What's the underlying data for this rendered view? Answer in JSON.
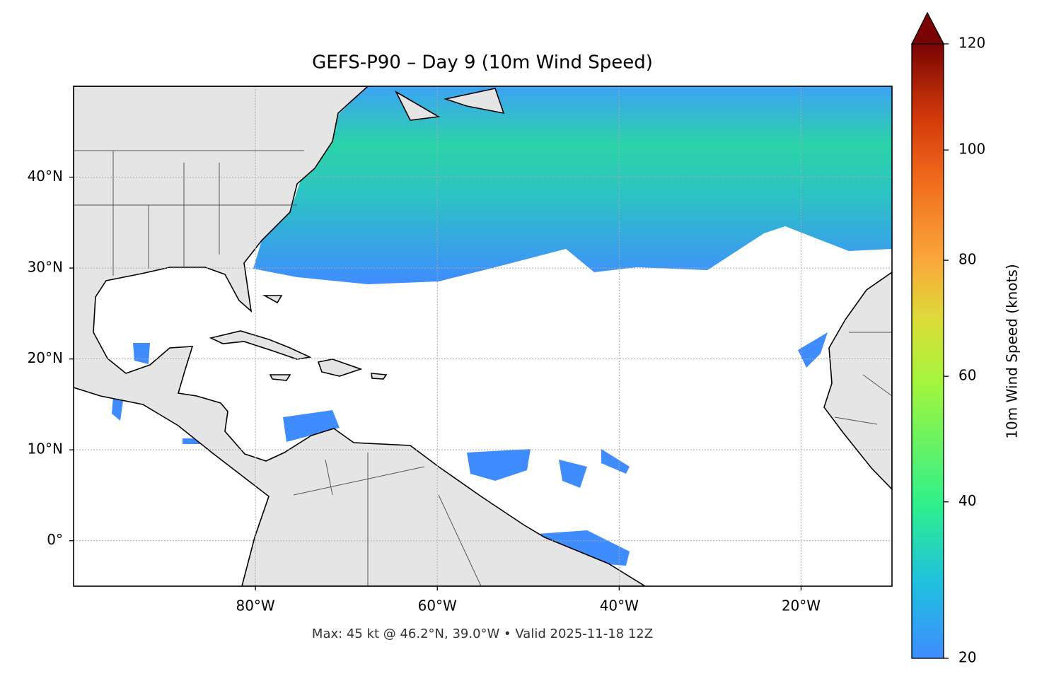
{
  "chart_data": {
    "type": "map",
    "title": "GEFS-P90 – Day 9 (10m Wind Speed)",
    "footer": "Max: 45 kt @ 46.2°N, 39.0°W • Valid 2025-11-18 12Z",
    "xlim": [
      -100,
      -10
    ],
    "ylim": [
      -5,
      50
    ],
    "xticks": [
      {
        "value": -80,
        "label": "80°W"
      },
      {
        "value": -60,
        "label": "60°W"
      },
      {
        "value": -40,
        "label": "40°W"
      },
      {
        "value": -20,
        "label": "20°W"
      }
    ],
    "yticks": [
      {
        "value": 0,
        "label": "0°"
      },
      {
        "value": 10,
        "label": "10°N"
      },
      {
        "value": 20,
        "label": "20°N"
      },
      {
        "value": 30,
        "label": "30°N"
      },
      {
        "value": 40,
        "label": "40°N"
      }
    ],
    "grid": true,
    "colorbar": {
      "label": "10m Wind Speed (knots)",
      "lim": [
        20,
        120
      ],
      "ticks": [
        20,
        40,
        60,
        80,
        100,
        120
      ],
      "norm": {
        "type": "power",
        "gamma": 0.85
      },
      "extend": "max"
    }
  }
}
